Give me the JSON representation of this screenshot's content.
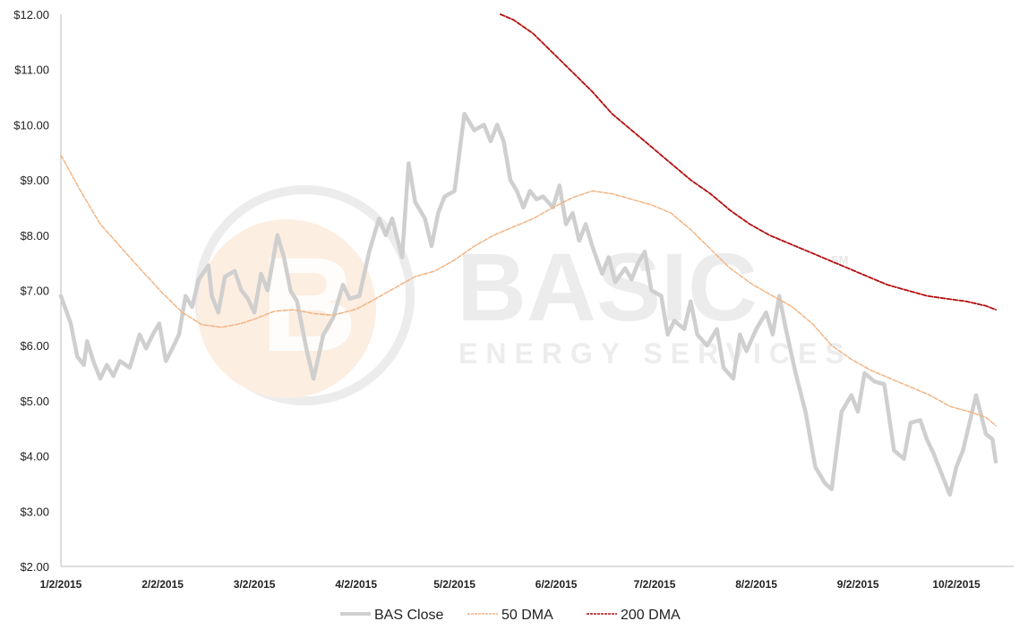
{
  "colors": {
    "bas_close": "#cfcfcf",
    "dma50": "#f2b483",
    "dma200": "#b30d0d",
    "axis": "#bbbbbb",
    "watermark_orange": "#fbe3cf",
    "watermark_gray": "#ececec"
  },
  "watermark": {
    "brand": "BASIC",
    "tagline": "ENERGY SERVICES",
    "mark": "SM"
  },
  "chart_data": {
    "type": "line",
    "title": "",
    "xlabel": "",
    "ylabel": "",
    "ylim": [
      2,
      12
    ],
    "x_start_date": "1/2/2015",
    "x_end_date": "10/14/2015",
    "grid": false,
    "legend_position": "bottom",
    "y_ticks": [
      "$2.00",
      "$3.00",
      "$4.00",
      "$5.00",
      "$6.00",
      "$7.00",
      "$8.00",
      "$9.00",
      "$10.00",
      "$11.00",
      "$12.00"
    ],
    "x_ticks": [
      "1/2/2015",
      "2/2/2015",
      "3/2/2015",
      "4/2/2015",
      "5/2/2015",
      "6/2/2015",
      "7/2/2015",
      "8/2/2015",
      "9/2/2015",
      "10/2/2015"
    ],
    "series": [
      {
        "name": "BAS Close",
        "color_key": "bas_close",
        "style": "solid-thick",
        "points": [
          [
            "1/2/2015",
            6.9
          ],
          [
            "1/5/2015",
            6.4
          ],
          [
            "1/7/2015",
            5.8
          ],
          [
            "1/9/2015",
            5.65
          ],
          [
            "1/10/2015",
            6.08
          ],
          [
            "1/12/2015",
            5.7
          ],
          [
            "1/14/2015",
            5.4
          ],
          [
            "1/16/2015",
            5.65
          ],
          [
            "1/18/2015",
            5.45
          ],
          [
            "1/20/2015",
            5.72
          ],
          [
            "1/23/2015",
            5.6
          ],
          [
            "1/26/2015",
            6.2
          ],
          [
            "1/28/2015",
            5.95
          ],
          [
            "1/30/2015",
            6.2
          ],
          [
            "2/1/2015",
            6.4
          ],
          [
            "2/3/2015",
            5.72
          ],
          [
            "2/5/2015",
            5.95
          ],
          [
            "2/7/2015",
            6.2
          ],
          [
            "2/9/2015",
            6.9
          ],
          [
            "2/11/2015",
            6.7
          ],
          [
            "2/13/2015",
            7.2
          ],
          [
            "2/16/2015",
            7.45
          ],
          [
            "2/17/2015",
            6.9
          ],
          [
            "2/19/2015",
            6.6
          ],
          [
            "2/21/2015",
            7.25
          ],
          [
            "2/24/2015",
            7.35
          ],
          [
            "2/26/2015",
            7.0
          ],
          [
            "2/28/2015",
            6.85
          ],
          [
            "3/2/2015",
            6.6
          ],
          [
            "3/4/2015",
            7.3
          ],
          [
            "3/6/2015",
            7.0
          ],
          [
            "3/9/2015",
            8.0
          ],
          [
            "3/11/2015",
            7.6
          ],
          [
            "3/13/2015",
            7.0
          ],
          [
            "3/15/2015",
            6.8
          ],
          [
            "3/18/2015",
            5.9
          ],
          [
            "3/20/2015",
            5.4
          ],
          [
            "3/23/2015",
            6.2
          ],
          [
            "3/26/2015",
            6.5
          ],
          [
            "3/29/2015",
            7.1
          ],
          [
            "3/31/2015",
            6.85
          ],
          [
            "4/3/2015",
            6.9
          ],
          [
            "4/6/2015",
            7.7
          ],
          [
            "4/9/2015",
            8.3
          ],
          [
            "4/11/2015",
            8.0
          ],
          [
            "4/13/2015",
            8.3
          ],
          [
            "4/16/2015",
            7.6
          ],
          [
            "4/18/2015",
            9.3
          ],
          [
            "4/20/2015",
            8.6
          ],
          [
            "4/23/2015",
            8.3
          ],
          [
            "4/25/2015",
            7.8
          ],
          [
            "4/27/2015",
            8.4
          ],
          [
            "4/29/2015",
            8.7
          ],
          [
            "5/2/2015",
            8.8
          ],
          [
            "5/5/2015",
            10.2
          ],
          [
            "5/8/2015",
            9.9
          ],
          [
            "5/11/2015",
            10.0
          ],
          [
            "5/13/2015",
            9.7
          ],
          [
            "5/15/2015",
            10.0
          ],
          [
            "5/17/2015",
            9.7
          ],
          [
            "5/19/2015",
            9.0
          ],
          [
            "5/21/2015",
            8.8
          ],
          [
            "5/23/2015",
            8.5
          ],
          [
            "5/25/2015",
            8.8
          ],
          [
            "5/27/2015",
            8.65
          ],
          [
            "5/29/2015",
            8.7
          ],
          [
            "6/1/2015",
            8.5
          ],
          [
            "6/3/2015",
            8.9
          ],
          [
            "6/5/2015",
            8.2
          ],
          [
            "6/7/2015",
            8.4
          ],
          [
            "6/9/2015",
            7.9
          ],
          [
            "6/11/2015",
            8.2
          ],
          [
            "6/13/2015",
            7.8
          ],
          [
            "6/16/2015",
            7.3
          ],
          [
            "6/18/2015",
            7.6
          ],
          [
            "6/20/2015",
            7.15
          ],
          [
            "6/23/2015",
            7.4
          ],
          [
            "6/25/2015",
            7.2
          ],
          [
            "6/27/2015",
            7.5
          ],
          [
            "6/29/2015",
            7.7
          ],
          [
            "7/1/2015",
            7.0
          ],
          [
            "7/4/2015",
            6.9
          ],
          [
            "7/6/2015",
            6.2
          ],
          [
            "7/8/2015",
            6.45
          ],
          [
            "7/11/2015",
            6.3
          ],
          [
            "7/13/2015",
            6.8
          ],
          [
            "7/15/2015",
            6.2
          ],
          [
            "7/18/2015",
            6.0
          ],
          [
            "7/21/2015",
            6.3
          ],
          [
            "7/23/2015",
            5.6
          ],
          [
            "7/26/2015",
            5.4
          ],
          [
            "7/28/2015",
            6.2
          ],
          [
            "7/30/2015",
            5.9
          ],
          [
            "8/2/2015",
            6.3
          ],
          [
            "8/5/2015",
            6.6
          ],
          [
            "8/7/2015",
            6.2
          ],
          [
            "8/9/2015",
            6.9
          ],
          [
            "8/11/2015",
            6.3
          ],
          [
            "8/14/2015",
            5.5
          ],
          [
            "8/17/2015",
            4.8
          ],
          [
            "8/20/2015",
            3.8
          ],
          [
            "8/23/2015",
            3.5
          ],
          [
            "8/25/2015",
            3.4
          ],
          [
            "8/28/2015",
            4.8
          ],
          [
            "8/31/2015",
            5.1
          ],
          [
            "9/2/2015",
            4.8
          ],
          [
            "9/4/2015",
            5.5
          ],
          [
            "9/7/2015",
            5.35
          ],
          [
            "9/10/2015",
            5.3
          ],
          [
            "9/13/2015",
            4.1
          ],
          [
            "9/16/2015",
            3.95
          ],
          [
            "9/18/2015",
            4.6
          ],
          [
            "9/21/2015",
            4.65
          ],
          [
            "9/23/2015",
            4.3
          ],
          [
            "9/25/2015",
            4.05
          ],
          [
            "9/28/2015",
            3.6
          ],
          [
            "9/30/2015",
            3.3
          ],
          [
            "10/2/2015",
            3.8
          ],
          [
            "10/4/2015",
            4.1
          ],
          [
            "10/6/2015",
            4.6
          ],
          [
            "10/8/2015",
            5.1
          ],
          [
            "10/11/2015",
            4.4
          ],
          [
            "10/13/2015",
            4.3
          ],
          [
            "10/14/2015",
            3.9
          ]
        ]
      },
      {
        "name": "50 DMA",
        "color_key": "dma50",
        "style": "dashed",
        "points": [
          [
            "1/2/2015",
            9.45
          ],
          [
            "1/8/2015",
            8.8
          ],
          [
            "1/14/2015",
            8.2
          ],
          [
            "1/20/2015",
            7.8
          ],
          [
            "1/26/2015",
            7.4
          ],
          [
            "2/2/2015",
            6.95
          ],
          [
            "2/8/2015",
            6.6
          ],
          [
            "2/14/2015",
            6.38
          ],
          [
            "2/20/2015",
            6.33
          ],
          [
            "2/26/2015",
            6.4
          ],
          [
            "3/2/2015",
            6.48
          ],
          [
            "3/8/2015",
            6.62
          ],
          [
            "3/14/2015",
            6.65
          ],
          [
            "3/20/2015",
            6.58
          ],
          [
            "3/26/2015",
            6.55
          ],
          [
            "4/2/2015",
            6.66
          ],
          [
            "4/8/2015",
            6.85
          ],
          [
            "4/14/2015",
            7.05
          ],
          [
            "4/20/2015",
            7.25
          ],
          [
            "4/26/2015",
            7.35
          ],
          [
            "5/2/2015",
            7.55
          ],
          [
            "5/8/2015",
            7.8
          ],
          [
            "5/14/2015",
            8.0
          ],
          [
            "5/20/2015",
            8.15
          ],
          [
            "5/26/2015",
            8.3
          ],
          [
            "6/1/2015",
            8.5
          ],
          [
            "6/7/2015",
            8.68
          ],
          [
            "6/13/2015",
            8.8
          ],
          [
            "6/19/2015",
            8.75
          ],
          [
            "6/25/2015",
            8.65
          ],
          [
            "7/1/2015",
            8.55
          ],
          [
            "7/7/2015",
            8.4
          ],
          [
            "7/13/2015",
            8.1
          ],
          [
            "7/19/2015",
            7.75
          ],
          [
            "7/25/2015",
            7.4
          ],
          [
            "8/1/2015",
            7.1
          ],
          [
            "8/7/2015",
            6.9
          ],
          [
            "8/13/2015",
            6.7
          ],
          [
            "8/19/2015",
            6.4
          ],
          [
            "8/25/2015",
            6.0
          ],
          [
            "8/31/2015",
            5.75
          ],
          [
            "9/6/2015",
            5.55
          ],
          [
            "9/12/2015",
            5.4
          ],
          [
            "9/18/2015",
            5.25
          ],
          [
            "9/24/2015",
            5.1
          ],
          [
            "9/30/2015",
            4.9
          ],
          [
            "10/6/2015",
            4.8
          ],
          [
            "10/11/2015",
            4.7
          ],
          [
            "10/14/2015",
            4.55
          ]
        ]
      },
      {
        "name": "200 DMA",
        "color_key": "dma200",
        "style": "dashed",
        "points": [
          [
            "5/16/2015",
            12.0
          ],
          [
            "5/20/2015",
            11.9
          ],
          [
            "5/26/2015",
            11.65
          ],
          [
            "6/1/2015",
            11.3
          ],
          [
            "6/7/2015",
            10.95
          ],
          [
            "6/13/2015",
            10.6
          ],
          [
            "6/19/2015",
            10.2
          ],
          [
            "6/25/2015",
            9.9
          ],
          [
            "7/1/2015",
            9.6
          ],
          [
            "7/7/2015",
            9.3
          ],
          [
            "7/13/2015",
            9.0
          ],
          [
            "7/19/2015",
            8.75
          ],
          [
            "7/25/2015",
            8.45
          ],
          [
            "7/31/2015",
            8.2
          ],
          [
            "8/6/2015",
            8.0
          ],
          [
            "8/12/2015",
            7.85
          ],
          [
            "8/18/2015",
            7.7
          ],
          [
            "8/24/2015",
            7.55
          ],
          [
            "8/30/2015",
            7.4
          ],
          [
            "9/5/2015",
            7.25
          ],
          [
            "9/11/2015",
            7.1
          ],
          [
            "9/17/2015",
            7.0
          ],
          [
            "9/23/2015",
            6.9
          ],
          [
            "9/29/2015",
            6.85
          ],
          [
            "10/5/2015",
            6.8
          ],
          [
            "10/11/2015",
            6.72
          ],
          [
            "10/14/2015",
            6.65
          ]
        ]
      }
    ]
  }
}
